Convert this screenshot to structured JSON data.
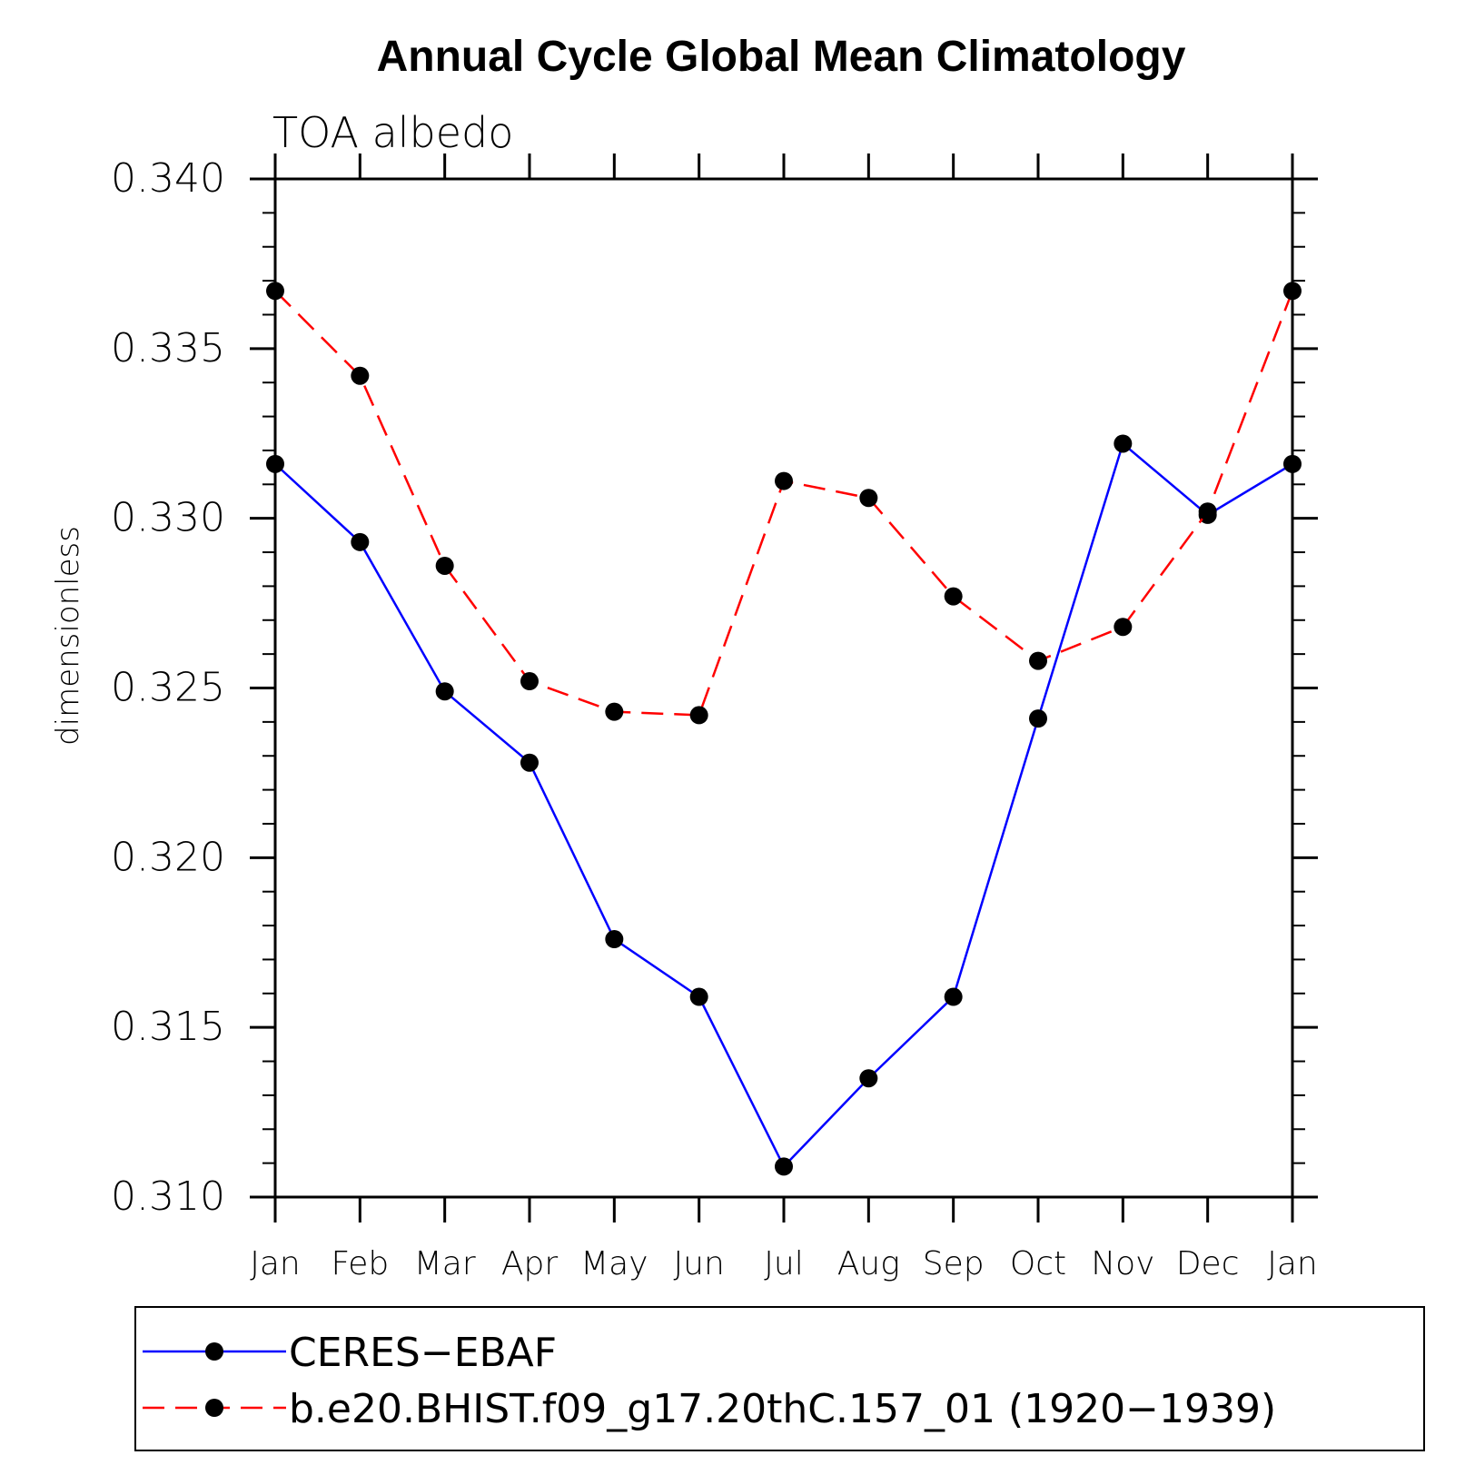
{
  "chart_data": {
    "type": "line",
    "title": "Annual Cycle Global Mean Climatology",
    "subtitle": "TOA albedo",
    "ylabel": "dimensionless",
    "xlabel": "",
    "categories": [
      "Jan",
      "Feb",
      "Mar",
      "Apr",
      "May",
      "Jun",
      "Jul",
      "Aug",
      "Sep",
      "Oct",
      "Nov",
      "Dec",
      "Jan"
    ],
    "ylim": [
      0.31,
      0.34
    ],
    "yticks": [
      "0.340",
      "0.335",
      "0.330",
      "0.325",
      "0.320",
      "0.315",
      "0.310"
    ],
    "grid": false,
    "legend_position": "bottom",
    "series": [
      {
        "name": "CERES−EBAF",
        "color": "#0000ff",
        "line_style": "solid",
        "marker": "filled-circle",
        "values": [
          0.3316,
          0.3293,
          0.3249,
          0.3228,
          0.3176,
          0.3159,
          0.3109,
          0.3135,
          0.3159,
          0.3241,
          0.3322,
          0.3301,
          0.3316
        ]
      },
      {
        "name": "b.e20.BHIST.f09_g17.20thC.157_01 (1920−1939)",
        "color": "#ff0000",
        "line_style": "dashed",
        "marker": "filled-circle",
        "values": [
          0.3367,
          0.3342,
          0.3286,
          0.3252,
          0.3243,
          0.3242,
          0.3311,
          0.3306,
          0.3277,
          0.3258,
          0.3268,
          0.3302,
          0.3367
        ]
      }
    ]
  }
}
